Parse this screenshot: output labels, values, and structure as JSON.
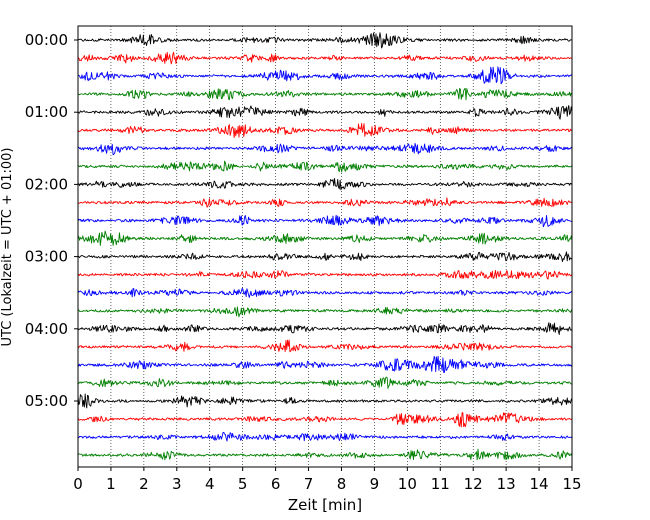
{
  "chart_data": {
    "type": "line",
    "title": "",
    "xlabel": "Zeit  [min]",
    "ylabel": "UTC (Lokalzeit = UTC + 01:00)",
    "xlim": [
      0,
      15
    ],
    "xticks": [
      0,
      1,
      2,
      3,
      4,
      5,
      6,
      7,
      8,
      9,
      10,
      11,
      12,
      13,
      14,
      15
    ],
    "ytick_labels": [
      "00:00",
      "01:00",
      "02:00",
      "03:00",
      "04:00",
      "05:00"
    ],
    "grid": "vertical dotted",
    "trace_interval_min": 15,
    "trace_count": 24,
    "trace_colors": [
      "#000000",
      "#ff0000",
      "#0000ff",
      "#008000"
    ]
  }
}
